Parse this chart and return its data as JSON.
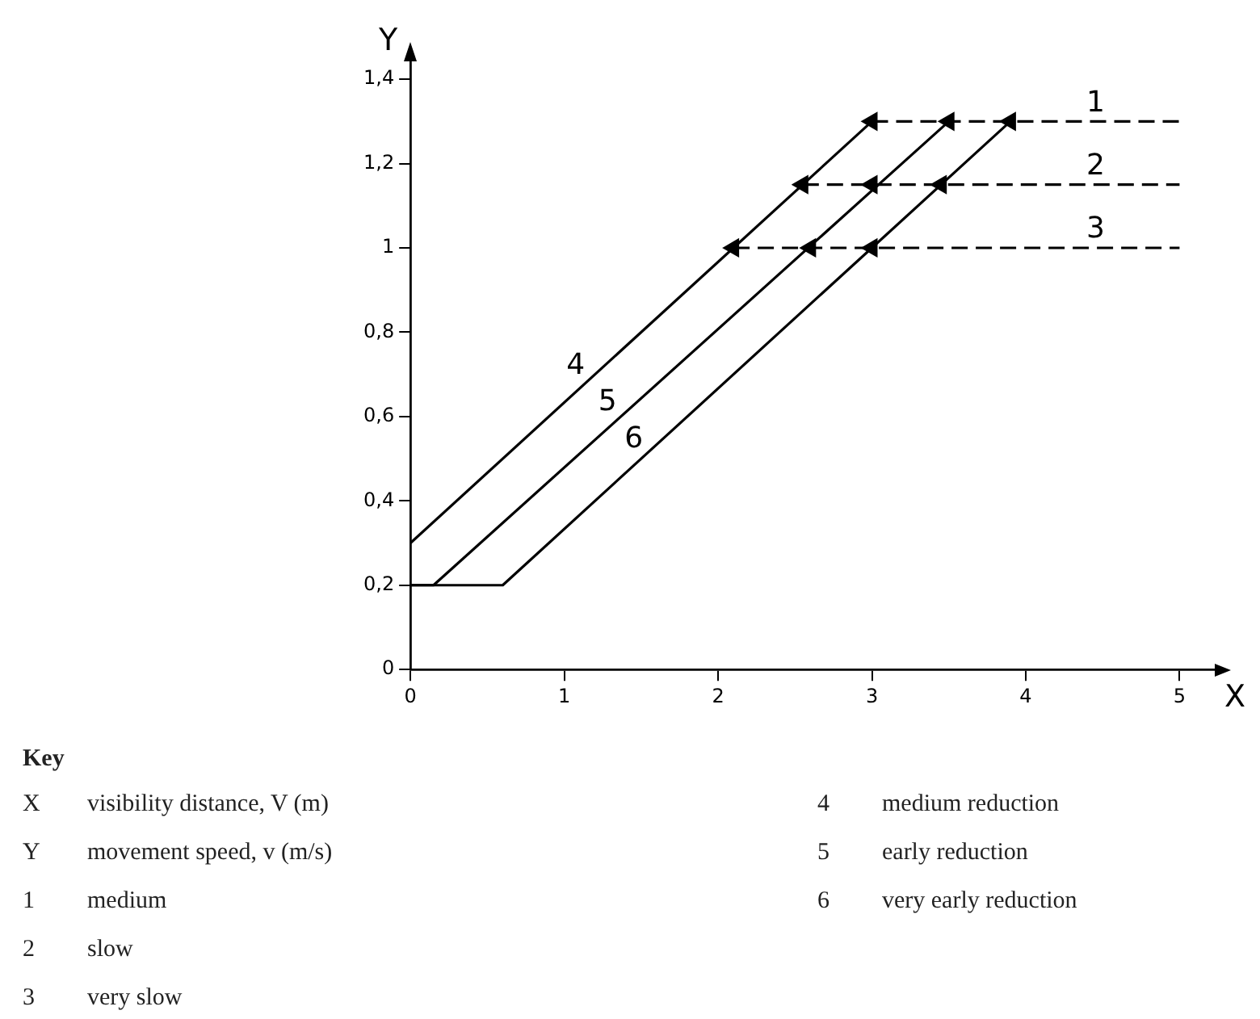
{
  "chart_data": {
    "type": "line",
    "xlabel": "X",
    "ylabel": "Y",
    "xlim": [
      0,
      5.25
    ],
    "ylim": [
      0,
      1.45
    ],
    "xticks": [
      0,
      1,
      2,
      3,
      4,
      5
    ],
    "yticks": [
      0,
      {
        "value": 0.2,
        "label": "0,2"
      },
      {
        "value": 0.4,
        "label": "0,4"
      },
      {
        "value": 0.6,
        "label": "0,6"
      },
      {
        "value": 0.8,
        "label": "0,8"
      },
      1,
      {
        "value": 1.2,
        "label": "1,2"
      },
      {
        "value": 1.4,
        "label": "1,4"
      }
    ],
    "marker": "none",
    "grid": false,
    "legend": false,
    "series": [
      {
        "name": "1",
        "color": "#000000",
        "line_style": "dashed",
        "marker": "triangle",
        "x": [
          3,
          3.5,
          3.9,
          5
        ],
        "values": [
          1.3,
          1.3,
          1.3,
          1.3
        ]
      },
      {
        "name": "2",
        "color": "#000000",
        "line_style": "dashed",
        "marker": "triangle",
        "x": [
          2.55,
          3,
          3.45,
          5
        ],
        "values": [
          1.15,
          1.15,
          1.15,
          1.15
        ]
      },
      {
        "name": "3",
        "color": "#000000",
        "line_style": "dashed",
        "marker": "triangle",
        "x": [
          2.1,
          2.6,
          3,
          5
        ],
        "values": [
          1.0,
          1.0,
          1.0,
          1.0
        ]
      },
      {
        "name": "4",
        "color": "#000000",
        "line_style": "solid",
        "x": [
          0,
          3
        ],
        "values": [
          0.3,
          1.3
        ]
      },
      {
        "name": "5",
        "color": "#000000",
        "line_style": "solid",
        "x": [
          0,
          0.15,
          3.5
        ],
        "values": [
          0.2,
          0.2,
          1.3
        ]
      },
      {
        "name": "6",
        "color": "#000000",
        "line_style": "solid",
        "x": [
          0,
          0.6,
          3.9
        ],
        "values": [
          0.2,
          0.2,
          1.3
        ]
      }
    ],
    "annotations": [
      "Key",
      "X",
      "visibility distance, V (m)",
      "Y",
      "movement speed, v (m/s)",
      "1",
      "medium",
      "2",
      "slow",
      "3",
      "very slow",
      "4",
      "medium reduction",
      "5",
      "early reduction",
      "6",
      "very early reduction"
    ]
  }
}
